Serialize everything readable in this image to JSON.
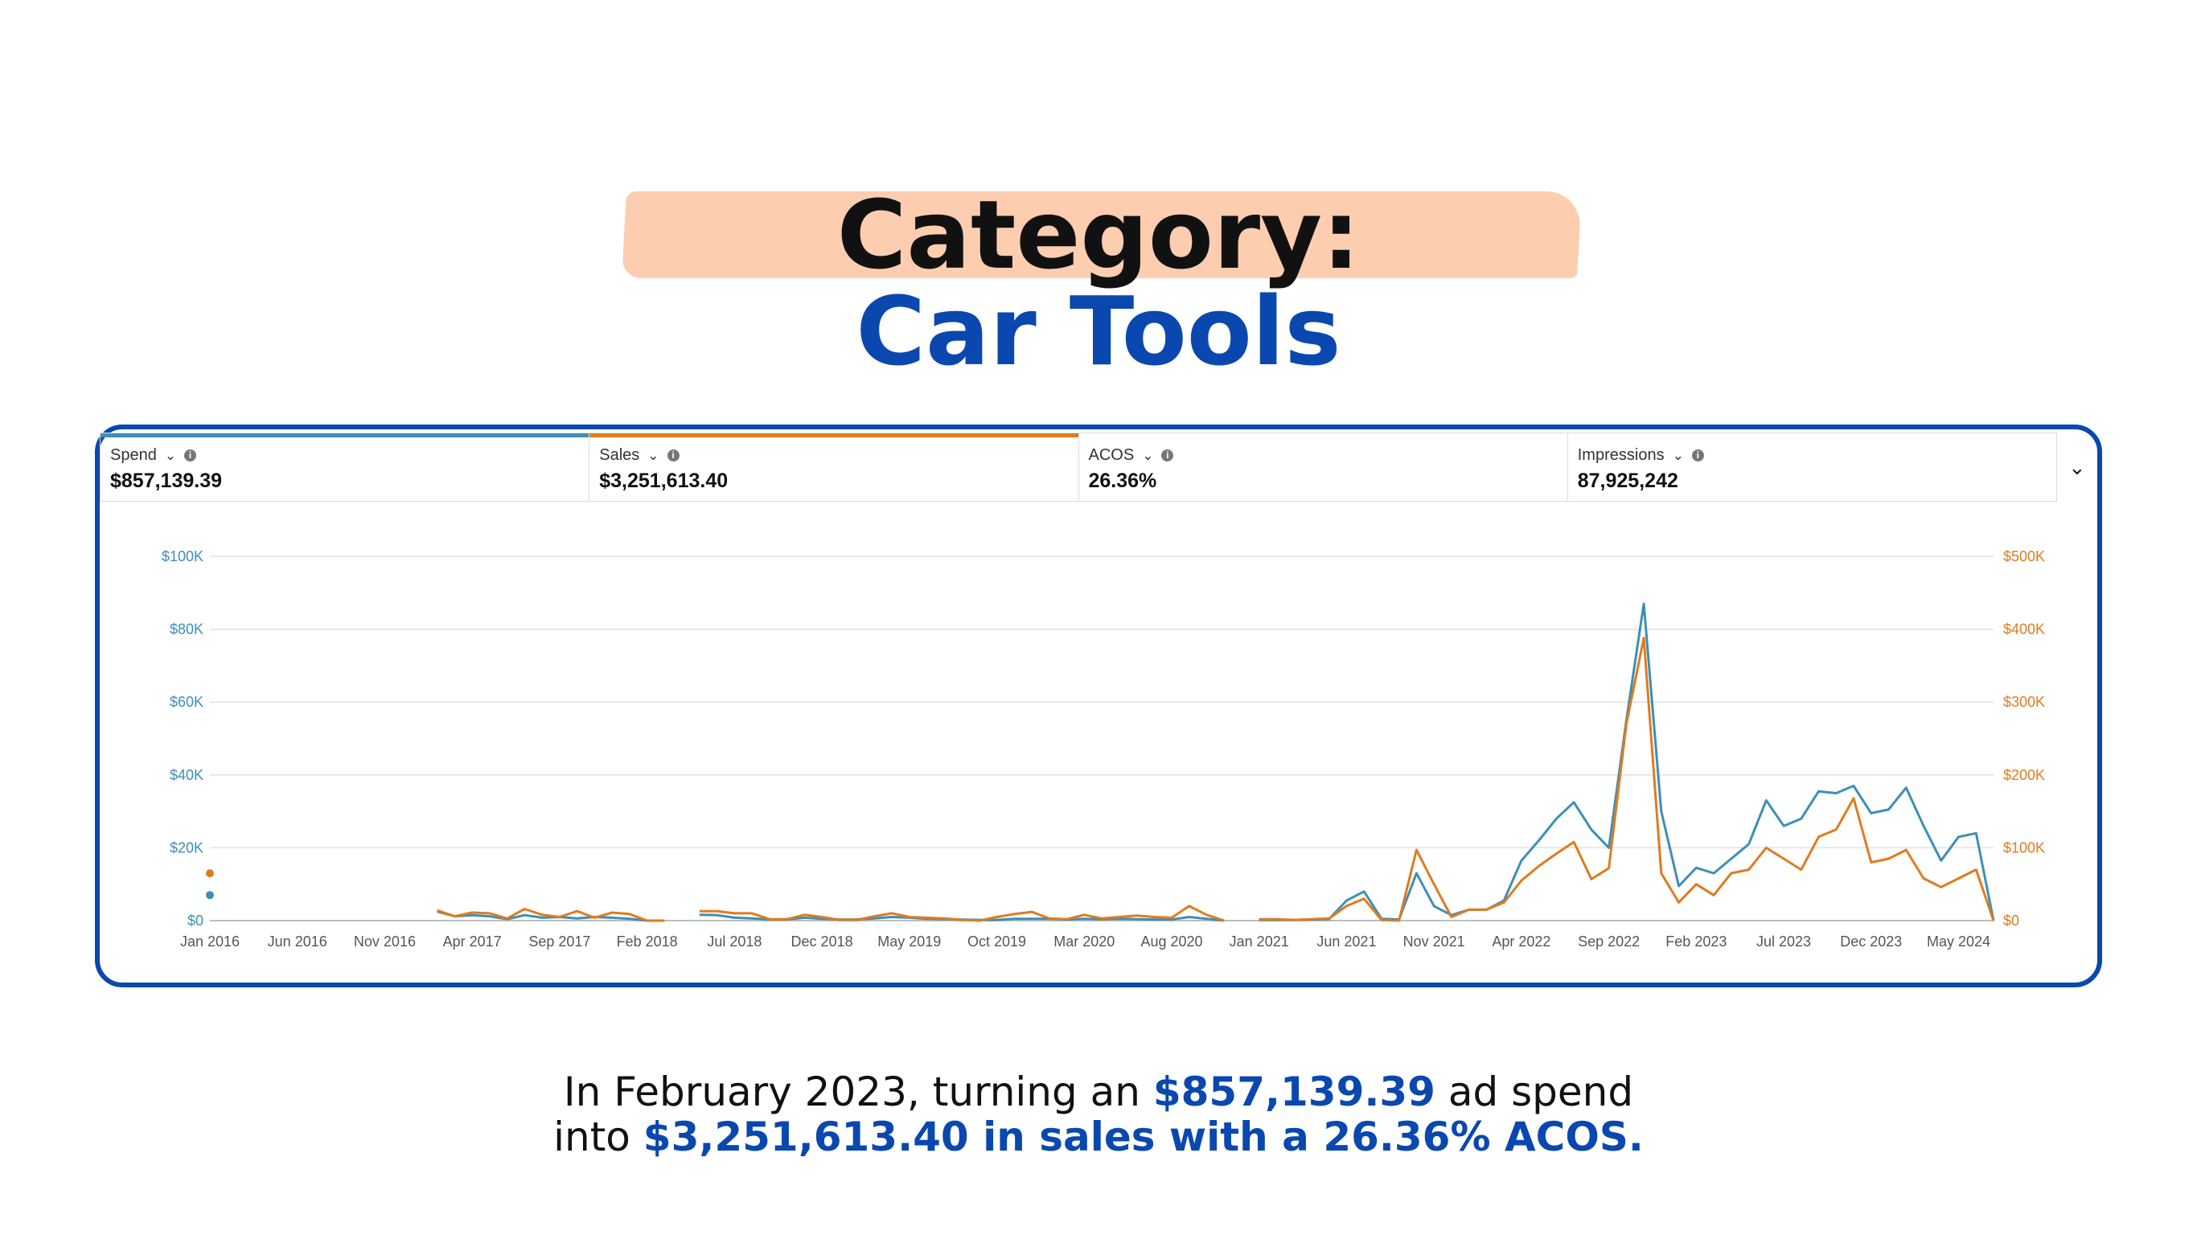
{
  "header": {
    "line1": "Category:",
    "line2": "Car Tools"
  },
  "metrics": [
    {
      "label": "Spend",
      "value": "$857,139.39",
      "color": "#3c8fb9"
    },
    {
      "label": "Sales",
      "value": "$3,251,613.40",
      "color": "#e07b1e"
    },
    {
      "label": "ACOS",
      "value": "26.36%",
      "color": ""
    },
    {
      "label": "Impressions",
      "value": "87,925,242",
      "color": ""
    }
  ],
  "caption": {
    "p1": "In February 2023, turning an ",
    "p2": "$857,139.39",
    "p3": " ad spend",
    "p4": "into ",
    "p5": "$3,251,613.40 in sales with a 26.36% ACOS."
  },
  "chart_data": {
    "type": "line",
    "grid": true,
    "colors": {
      "spend": "#3c8fb9",
      "sales": "#e07b1e",
      "grid": "#e2e2e2"
    },
    "x_ticks": [
      "Jan 2016",
      "Jun 2016",
      "Nov 2016",
      "Apr 2017",
      "Sep 2017",
      "Feb 2018",
      "Jul 2018",
      "Dec 2018",
      "May 2019",
      "Oct 2019",
      "Mar 2020",
      "Aug 2020",
      "Jan 2021",
      "Jun 2021",
      "Nov 2021",
      "Apr 2022",
      "Sep 2022",
      "Feb 2023",
      "Jul 2023",
      "Dec 2023",
      "May 2024"
    ],
    "y_left": {
      "ticks": [
        "$0",
        "$20K",
        "$40K",
        "$60K",
        "$80K",
        "$100K"
      ],
      "range": [
        0,
        100000
      ]
    },
    "y_right": {
      "ticks": [
        "$0",
        "$100K",
        "$200K",
        "$300K",
        "$400K",
        "$500K"
      ],
      "range": [
        0,
        500000
      ]
    },
    "series": [
      {
        "axis": "left",
        "points": [
          [
            "2016-01",
            7000
          ],
          null,
          [
            "2017-02",
            2500
          ],
          [
            "2017-03",
            1200
          ],
          [
            "2017-04",
            1500
          ],
          [
            "2017-05",
            1200
          ],
          [
            "2017-06",
            400
          ],
          [
            "2017-07",
            1500
          ],
          [
            "2017-08",
            800
          ],
          [
            "2017-09",
            1000
          ],
          [
            "2017-10",
            600
          ],
          [
            "2017-11",
            1000
          ],
          [
            "2017-12",
            800
          ],
          [
            "2018-01",
            500
          ],
          [
            "2018-02",
            0
          ],
          null,
          [
            "2018-05",
            1600
          ],
          [
            "2018-06",
            1500
          ],
          [
            "2018-07",
            800
          ],
          [
            "2018-08",
            600
          ],
          [
            "2018-09",
            300
          ],
          [
            "2018-10",
            300
          ],
          [
            "2018-11",
            800
          ],
          [
            "2018-12",
            500
          ],
          [
            "2019-01",
            300
          ],
          [
            "2019-02",
            300
          ],
          [
            "2019-03",
            600
          ],
          [
            "2019-04",
            1000
          ],
          [
            "2019-05",
            800
          ],
          [
            "2019-06",
            500
          ],
          [
            "2019-07",
            400
          ],
          [
            "2019-08",
            300
          ],
          [
            "2019-09",
            200
          ],
          [
            "2019-10",
            200
          ],
          [
            "2019-11",
            500
          ],
          [
            "2019-12",
            500
          ],
          [
            "2020-01",
            500
          ],
          [
            "2020-02",
            300
          ],
          [
            "2020-03",
            500
          ],
          [
            "2020-04",
            400
          ],
          [
            "2020-05",
            500
          ],
          [
            "2020-06",
            400
          ],
          [
            "2020-07",
            300
          ],
          [
            "2020-08",
            300
          ],
          [
            "2020-09",
            1000
          ],
          [
            "2020-10",
            500
          ],
          [
            "2020-11",
            0
          ],
          null,
          [
            "2021-01",
            200
          ],
          [
            "2021-02",
            200
          ],
          [
            "2021-03",
            200
          ],
          [
            "2021-04",
            300
          ],
          [
            "2021-05",
            400
          ],
          [
            "2021-06",
            5500
          ],
          [
            "2021-07",
            8000
          ],
          [
            "2021-08",
            500
          ],
          [
            "2021-09",
            300
          ],
          [
            "2021-10",
            13000
          ],
          [
            "2021-11",
            4000
          ],
          [
            "2021-12",
            1500
          ],
          [
            "2022-01",
            3000
          ],
          [
            "2022-02",
            3000
          ],
          [
            "2022-03",
            5500
          ],
          [
            "2022-04",
            16500
          ],
          [
            "2022-05",
            22000
          ],
          [
            "2022-06",
            28000
          ],
          [
            "2022-07",
            32500
          ],
          [
            "2022-08",
            25000
          ],
          [
            "2022-09",
            20000
          ],
          [
            "2022-10",
            55000
          ],
          [
            "2022-11",
            87000
          ],
          [
            "2022-12",
            30000
          ],
          [
            "2023-01",
            9500
          ],
          [
            "2023-02",
            14500
          ],
          [
            "2023-03",
            13000
          ],
          [
            "2023-04",
            17000
          ],
          [
            "2023-05",
            21000
          ],
          [
            "2023-06",
            33000
          ],
          [
            "2023-07",
            26000
          ],
          [
            "2023-08",
            28000
          ],
          [
            "2023-09",
            35500
          ],
          [
            "2023-10",
            35000
          ],
          [
            "2023-11",
            37000
          ],
          [
            "2023-12",
            29500
          ],
          [
            "2024-01",
            30500
          ],
          [
            "2024-02",
            36500
          ],
          [
            "2024-03",
            26000
          ],
          [
            "2024-04",
            16500
          ],
          [
            "2024-05",
            23000
          ],
          [
            "2024-06",
            24000
          ],
          [
            "2024-07",
            0
          ]
        ]
      },
      {
        "axis": "right",
        "points": [
          [
            "2016-01",
            65000
          ],
          null,
          [
            "2017-02",
            14000
          ],
          [
            "2017-03",
            6000
          ],
          [
            "2017-04",
            11000
          ],
          [
            "2017-05",
            10000
          ],
          [
            "2017-06",
            3000
          ],
          [
            "2017-07",
            16000
          ],
          [
            "2017-08",
            8000
          ],
          [
            "2017-09",
            5000
          ],
          [
            "2017-10",
            13000
          ],
          [
            "2017-11",
            4000
          ],
          [
            "2017-12",
            11000
          ],
          [
            "2018-01",
            9000
          ],
          [
            "2018-02",
            0
          ],
          [
            "2018-03",
            0
          ],
          null,
          [
            "2018-05",
            13000
          ],
          [
            "2018-06",
            13000
          ],
          [
            "2018-07",
            10000
          ],
          [
            "2018-08",
            10000
          ],
          [
            "2018-09",
            2000
          ],
          [
            "2018-10",
            2000
          ],
          [
            "2018-11",
            8000
          ],
          [
            "2018-12",
            5000
          ],
          [
            "2019-01",
            1000
          ],
          [
            "2019-02",
            1000
          ],
          [
            "2019-03",
            6000
          ],
          [
            "2019-04",
            10000
          ],
          [
            "2019-05",
            5000
          ],
          [
            "2019-06",
            4000
          ],
          [
            "2019-07",
            3000
          ],
          [
            "2019-08",
            1000
          ],
          [
            "2019-09",
            0
          ],
          [
            "2019-10",
            5000
          ],
          [
            "2019-11",
            9000
          ],
          [
            "2019-12",
            12000
          ],
          [
            "2020-01",
            3000
          ],
          [
            "2020-02",
            2000
          ],
          [
            "2020-03",
            8000
          ],
          [
            "2020-04",
            3000
          ],
          [
            "2020-05",
            5000
          ],
          [
            "2020-06",
            7000
          ],
          [
            "2020-07",
            5000
          ],
          [
            "2020-08",
            4000
          ],
          [
            "2020-09",
            20000
          ],
          [
            "2020-10",
            8000
          ],
          [
            "2020-11",
            0
          ],
          null,
          [
            "2021-01",
            2000
          ],
          [
            "2021-02",
            2000
          ],
          [
            "2021-03",
            1000
          ],
          [
            "2021-04",
            2000
          ],
          [
            "2021-05",
            3000
          ],
          [
            "2021-06",
            20000
          ],
          [
            "2021-07",
            30000
          ],
          [
            "2021-08",
            1000
          ],
          [
            "2021-09",
            0
          ],
          [
            "2021-10",
            97000
          ],
          [
            "2021-11",
            50000
          ],
          [
            "2021-12",
            5000
          ],
          [
            "2022-01",
            15000
          ],
          [
            "2022-02",
            15000
          ],
          [
            "2022-03",
            25000
          ],
          [
            "2022-04",
            55000
          ],
          [
            "2022-05",
            75000
          ],
          [
            "2022-06",
            92000
          ],
          [
            "2022-07",
            108000
          ],
          [
            "2022-08",
            57000
          ],
          [
            "2022-09",
            72000
          ],
          [
            "2022-10",
            270000
          ],
          [
            "2022-11",
            388000
          ],
          [
            "2022-12",
            65000
          ],
          [
            "2023-01",
            25000
          ],
          [
            "2023-02",
            50000
          ],
          [
            "2023-03",
            35000
          ],
          [
            "2023-04",
            65000
          ],
          [
            "2023-05",
            70000
          ],
          [
            "2023-06",
            100000
          ],
          [
            "2023-07",
            85000
          ],
          [
            "2023-08",
            70000
          ],
          [
            "2023-09",
            115000
          ],
          [
            "2023-10",
            125000
          ],
          [
            "2023-11",
            168000
          ],
          [
            "2023-12",
            80000
          ],
          [
            "2024-01",
            85000
          ],
          [
            "2024-02",
            97000
          ],
          [
            "2024-03",
            58000
          ],
          [
            "2024-04",
            46000
          ],
          [
            "2024-05",
            58000
          ],
          [
            "2024-06",
            70000
          ],
          [
            "2024-07",
            0
          ]
        ]
      }
    ]
  }
}
